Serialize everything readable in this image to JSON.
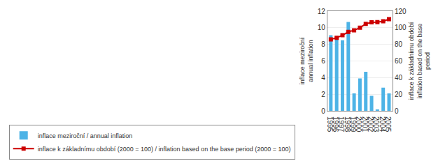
{
  "chart_data": {
    "type": "bar",
    "x": [
      1995,
      1996,
      1997,
      1998,
      1999,
      2000,
      2001,
      2002,
      2003,
      2004,
      2005
    ],
    "series": [
      {
        "name": "inflace meziroční / annual inflation",
        "type": "bar",
        "color": "#4db3e6",
        "values": [
          9.1,
          8.8,
          8.5,
          10.7,
          2.1,
          3.9,
          4.7,
          1.8,
          0.1,
          2.8,
          2.1
        ]
      },
      {
        "name": "inflace k základnímu období (2000 = 100) / inflation based on the base period (2000 = 100)",
        "type": "line",
        "color": "#cc0000",
        "marker": "square",
        "axis": "y2",
        "values": [
          86,
          88,
          91,
          95,
          97,
          100,
          104.7,
          106.6,
          106.7,
          107.8,
          110.4
        ]
      }
    ],
    "ylabel": "inflace meziroční\nannual inflation",
    "y2label": "inflace k základnímu období\ninflation based on the base\nperiod",
    "xlim": [
      1994.4,
      2005.6
    ],
    "xticks": [
      1995,
      1996,
      1997,
      1998,
      1999,
      2000,
      2001,
      2002,
      2003,
      2004,
      2005
    ],
    "ylim": [
      0,
      12
    ],
    "yticks": [
      0,
      2,
      4,
      6,
      8,
      10,
      12
    ],
    "y2lim": [
      0,
      120
    ],
    "y2ticks": [
      0,
      20,
      40,
      60,
      80,
      100,
      120
    ],
    "grid": true,
    "legend": "lower left"
  }
}
